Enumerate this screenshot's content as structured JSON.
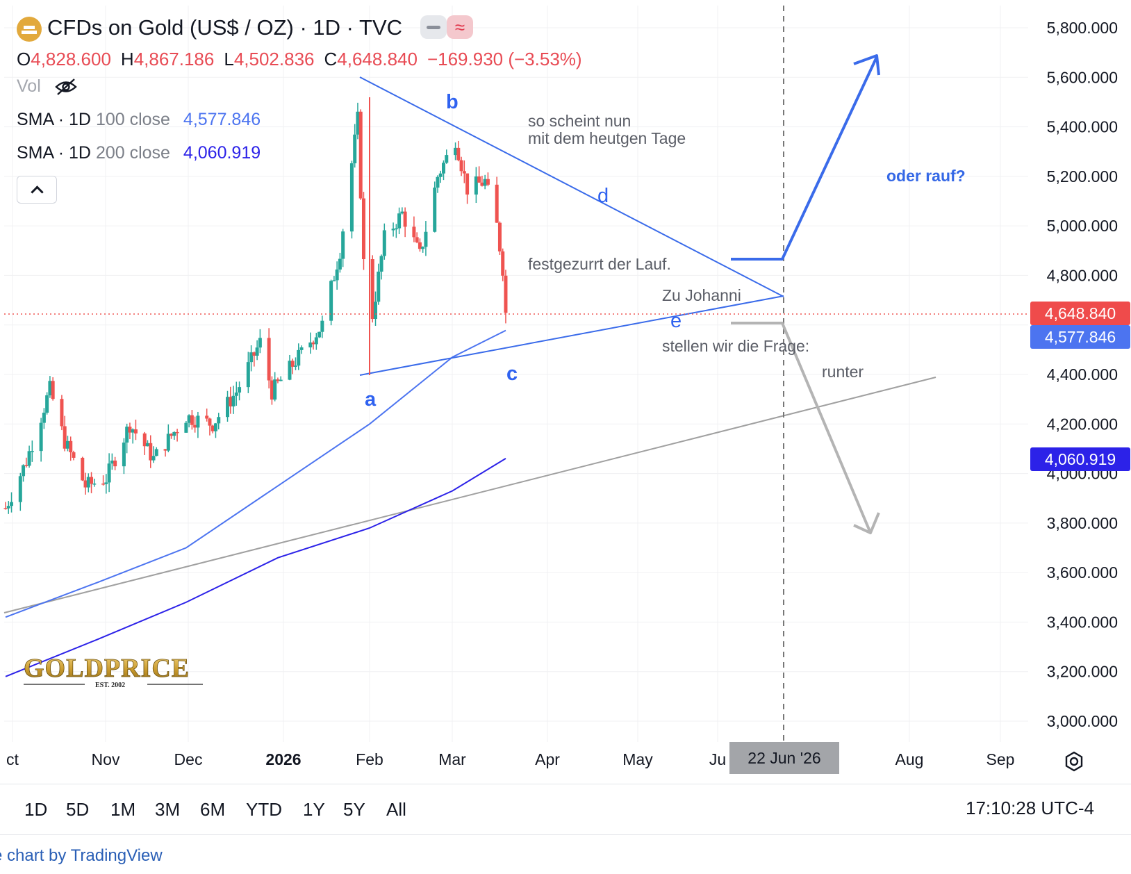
{
  "header": {
    "title": "CFDs on Gold (US$ / OZ) · 1D · TVC",
    "ohlc": [
      {
        "key": "O",
        "value": "4,828.600"
      },
      {
        "key": "H",
        "value": "4,867.186"
      },
      {
        "key": "L",
        "value": "4,502.836"
      },
      {
        "key": "C",
        "value": "4,648.840"
      }
    ],
    "change": "−169.930 (−3.53%)",
    "vol_label": "Vol",
    "sma100": {
      "name": "SMA · 1D",
      "params": "100 close",
      "value": "4,577.846",
      "color": "#4c74f0"
    },
    "sma200": {
      "name": "SMA · 1D",
      "params": "200 close",
      "value": "4,060.919",
      "color": "#2c22e8"
    }
  },
  "chart_data": {
    "type": "candlestick",
    "title": "CFDs on Gold (US$ / OZ) · 1D · TVC",
    "ylim": [
      2920,
      5900
    ],
    "y_ticks": [
      "5,800.000",
      "5,600.000",
      "5,400.000",
      "5,200.000",
      "5,000.000",
      "4,800.000",
      "4,600.000",
      "4,400.000",
      "4,200.000",
      "4,000.000",
      "3,800.000",
      "3,600.000",
      "3,400.000",
      "3,200.000",
      "3,000.000"
    ],
    "x_ticks": [
      "ct",
      "Nov",
      "Dec",
      "2026",
      "Feb",
      "Mar",
      "Apr",
      "May",
      "Ju",
      "Aug",
      "Sep"
    ],
    "last_price": "4,648.840",
    "last_price_value": 4648.84,
    "sma100_last": "4,577.846",
    "sma200_last": "4,060.919",
    "price_path": [
      {
        "date": "2025-10-01",
        "close": 3860
      },
      {
        "date": "2025-10-08",
        "close": 4050
      },
      {
        "date": "2025-10-16",
        "close": 4340
      },
      {
        "date": "2025-10-21",
        "close": 4130
      },
      {
        "date": "2025-10-28",
        "close": 3950
      },
      {
        "date": "2025-11-04",
        "close": 3980
      },
      {
        "date": "2025-11-12",
        "close": 4200
      },
      {
        "date": "2025-11-20",
        "close": 4060
      },
      {
        "date": "2025-12-01",
        "close": 4230
      },
      {
        "date": "2025-12-10",
        "close": 4200
      },
      {
        "date": "2025-12-18",
        "close": 4330
      },
      {
        "date": "2025-12-26",
        "close": 4530
      },
      {
        "date": "2025-12-30",
        "close": 4330
      },
      {
        "date": "2026-01-08",
        "close": 4470
      },
      {
        "date": "2026-01-16",
        "close": 4600
      },
      {
        "date": "2026-01-22",
        "close": 4900
      },
      {
        "date": "2026-01-28",
        "close": 5430
      },
      {
        "date": "2026-01-30",
        "close": 4850
      },
      {
        "date": "2026-02-02",
        "close": 4640
      },
      {
        "date": "2026-02-06",
        "close": 4950
      },
      {
        "date": "2026-02-12",
        "close": 5050
      },
      {
        "date": "2026-02-18",
        "close": 4880
      },
      {
        "date": "2026-02-24",
        "close": 5200
      },
      {
        "date": "2026-03-02",
        "close": 5350
      },
      {
        "date": "2026-03-06",
        "close": 5150
      },
      {
        "date": "2026-03-12",
        "close": 5180
      },
      {
        "date": "2026-03-16",
        "close": 5000
      },
      {
        "date": "2026-03-18",
        "close": 4830
      },
      {
        "date": "2026-03-19",
        "close": 4648.84
      }
    ],
    "lows_highs": {
      "a_low": 4400,
      "b_high": 5420,
      "peak_high": 5600,
      "c_low": 4502.836
    },
    "sma100": [
      {
        "date": "2025-10-01",
        "value": 3420
      },
      {
        "date": "2025-11-01",
        "value": 3560
      },
      {
        "date": "2025-12-01",
        "value": 3700
      },
      {
        "date": "2026-01-01",
        "value": 3950
      },
      {
        "date": "2026-02-01",
        "value": 4200
      },
      {
        "date": "2026-03-01",
        "value": 4470
      },
      {
        "date": "2026-03-19",
        "value": 4577.846
      }
    ],
    "sma200": [
      {
        "date": "2025-10-01",
        "value": 3180
      },
      {
        "date": "2025-11-01",
        "value": 3330
      },
      {
        "date": "2025-12-01",
        "value": 3480
      },
      {
        "date": "2026-01-01",
        "value": 3660
      },
      {
        "date": "2026-02-01",
        "value": 3780
      },
      {
        "date": "2026-03-01",
        "value": 3930
      },
      {
        "date": "2026-03-19",
        "value": 4060.919
      }
    ],
    "vertical_marker": "2026-06-22",
    "vertical_marker_label": "22 Jun '26"
  },
  "annotations": {
    "text1a": "so scheint nun",
    "text1b": "mit dem heutgen Tage",
    "text2": "festgezurrt der Lauf.",
    "text3": "Zu Johanni",
    "text4": "stellen wir die Frage:",
    "runter": "runter",
    "oder_rauf": "oder rauf?",
    "wave_a": "a",
    "wave_b": "b",
    "wave_c": "c",
    "wave_d": "d",
    "wave_e": "e"
  },
  "colors": {
    "up": "#26a69a",
    "down": "#ef5350",
    "trend_blue": "#3a6bea",
    "trend_gray": "#a0a0a0",
    "last_price_tag": "#ef4b4b",
    "sma100_tag": "#4c74f0",
    "sma200_tag": "#2c22e8"
  },
  "timeframes": [
    "1D",
    "5D",
    "1M",
    "3M",
    "6M",
    "YTD",
    "1Y",
    "5Y",
    "All"
  ],
  "clock": "17:10:28 UTC-4",
  "credit": "e chart by TradingView",
  "watermark": {
    "brand": "GOLDPRICE",
    "est": "EST. 2002"
  }
}
